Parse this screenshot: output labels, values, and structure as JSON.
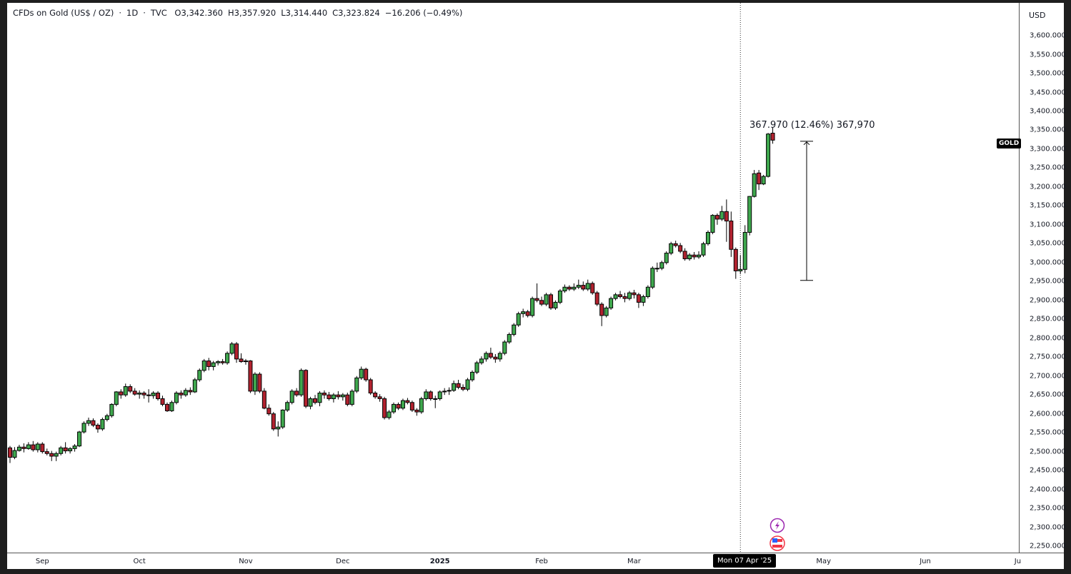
{
  "header": {
    "symbol": "CFDs on Gold (US$ / OZ)",
    "interval": "1D",
    "exchange": "TVC",
    "open": "O3,342.360",
    "high": "H3,357.920",
    "low": "L3,314.440",
    "close": "C3,323.824",
    "change": "−16.206 (−0.49%)",
    "separator": "·"
  },
  "axis": {
    "currency": "USD",
    "symbol_tag": "GOLD",
    "crosshair_date": "Mon 07 Apr '25"
  },
  "measure": {
    "label": "367.970 (12.46%) 367,970",
    "from": 2953,
    "to": 3321
  },
  "icons": [
    "lightning-event-icon",
    "us-flag-event-icon"
  ],
  "colors": {
    "up": "#3fa84e",
    "down": "#b2222f",
    "outline": "#000000"
  },
  "chart_data": {
    "type": "candlestick",
    "title": "CFDs on Gold (US$ / OZ) · 1D · TVC",
    "ylim": [
      2233,
      3687
    ],
    "yticks": [
      "2,250.000",
      "2,300.000",
      "2,350.000",
      "2,400.000",
      "2,450.000",
      "2,500.000",
      "2,550.000",
      "2,600.000",
      "2,650.000",
      "2,700.000",
      "2,750.000",
      "2,800.000",
      "2,850.000",
      "2,900.000",
      "2,950.000",
      "3,000.000",
      "3,050.000",
      "3,100.000",
      "3,150.000",
      "3,200.000",
      "3,250.000",
      "3,300.000",
      "3,350.000",
      "3,400.000",
      "3,450.000",
      "3,500.000",
      "3,550.000",
      "3,600.000"
    ],
    "xticks": [
      {
        "label": "Sep",
        "bar": 7
      },
      {
        "label": "Oct",
        "bar": 28
      },
      {
        "label": "Nov",
        "bar": 51
      },
      {
        "label": "Dec",
        "bar": 72
      },
      {
        "label": "2025",
        "bar": 93
      },
      {
        "label": "Feb",
        "bar": 115
      },
      {
        "label": "Mar",
        "bar": 135
      },
      {
        "label": "May",
        "bar": 176
      },
      {
        "label": "Jun",
        "bar": 198
      },
      {
        "label": "Ju",
        "bar": 218
      }
    ],
    "crosshair_bar": 158,
    "candles": [
      [
        2510,
        2515,
        2470,
        2485
      ],
      [
        2485,
        2512,
        2480,
        2503
      ],
      [
        2503,
        2518,
        2500,
        2512
      ],
      [
        2512,
        2522,
        2498,
        2508
      ],
      [
        2508,
        2525,
        2505,
        2518
      ],
      [
        2518,
        2528,
        2500,
        2505
      ],
      [
        2505,
        2525,
        2498,
        2520
      ],
      [
        2520,
        2525,
        2495,
        2500
      ],
      [
        2500,
        2508,
        2490,
        2495
      ],
      [
        2495,
        2502,
        2475,
        2488
      ],
      [
        2488,
        2500,
        2475,
        2495
      ],
      [
        2495,
        2515,
        2490,
        2510
      ],
      [
        2510,
        2525,
        2495,
        2502
      ],
      [
        2502,
        2512,
        2495,
        2508
      ],
      [
        2508,
        2520,
        2500,
        2515
      ],
      [
        2515,
        2555,
        2512,
        2552
      ],
      [
        2552,
        2580,
        2548,
        2575
      ],
      [
        2575,
        2590,
        2568,
        2582
      ],
      [
        2582,
        2588,
        2565,
        2570
      ],
      [
        2570,
        2575,
        2550,
        2560
      ],
      [
        2560,
        2590,
        2555,
        2585
      ],
      [
        2585,
        2600,
        2580,
        2595
      ],
      [
        2595,
        2628,
        2590,
        2625
      ],
      [
        2625,
        2660,
        2620,
        2658
      ],
      [
        2658,
        2665,
        2640,
        2650
      ],
      [
        2650,
        2680,
        2645,
        2672
      ],
      [
        2672,
        2678,
        2655,
        2660
      ],
      [
        2660,
        2668,
        2648,
        2652
      ],
      [
        2652,
        2662,
        2640,
        2655
      ],
      [
        2655,
        2660,
        2640,
        2650
      ],
      [
        2650,
        2665,
        2630,
        2648
      ],
      [
        2648,
        2660,
        2640,
        2655
      ],
      [
        2655,
        2660,
        2635,
        2640
      ],
      [
        2640,
        2648,
        2620,
        2625
      ],
      [
        2625,
        2630,
        2605,
        2608
      ],
      [
        2608,
        2635,
        2605,
        2630
      ],
      [
        2630,
        2660,
        2625,
        2655
      ],
      [
        2655,
        2662,
        2640,
        2650
      ],
      [
        2650,
        2668,
        2645,
        2662
      ],
      [
        2662,
        2670,
        2650,
        2658
      ],
      [
        2658,
        2695,
        2655,
        2690
      ],
      [
        2690,
        2720,
        2685,
        2715
      ],
      [
        2715,
        2745,
        2710,
        2740
      ],
      [
        2740,
        2748,
        2715,
        2725
      ],
      [
        2725,
        2740,
        2715,
        2735
      ],
      [
        2735,
        2742,
        2728,
        2738
      ],
      [
        2738,
        2745,
        2730,
        2735
      ],
      [
        2735,
        2765,
        2730,
        2760
      ],
      [
        2760,
        2790,
        2755,
        2785
      ],
      [
        2785,
        2790,
        2735,
        2745
      ],
      [
        2745,
        2760,
        2735,
        2738
      ],
      [
        2738,
        2745,
        2730,
        2740
      ],
      [
        2740,
        2742,
        2655,
        2660
      ],
      [
        2660,
        2710,
        2650,
        2705
      ],
      [
        2705,
        2710,
        2655,
        2660
      ],
      [
        2660,
        2668,
        2612,
        2615
      ],
      [
        2615,
        2625,
        2595,
        2600
      ],
      [
        2600,
        2605,
        2555,
        2560
      ],
      [
        2560,
        2580,
        2540,
        2565
      ],
      [
        2565,
        2612,
        2560,
        2610
      ],
      [
        2610,
        2635,
        2605,
        2630
      ],
      [
        2630,
        2665,
        2625,
        2660
      ],
      [
        2660,
        2668,
        2645,
        2650
      ],
      [
        2650,
        2720,
        2645,
        2715
      ],
      [
        2715,
        2718,
        2615,
        2620
      ],
      [
        2620,
        2645,
        2612,
        2640
      ],
      [
        2640,
        2650,
        2625,
        2630
      ],
      [
        2630,
        2660,
        2620,
        2655
      ],
      [
        2655,
        2662,
        2640,
        2650
      ],
      [
        2650,
        2658,
        2635,
        2640
      ],
      [
        2640,
        2655,
        2630,
        2650
      ],
      [
        2650,
        2660,
        2638,
        2645
      ],
      [
        2645,
        2655,
        2635,
        2650
      ],
      [
        2650,
        2656,
        2620,
        2625
      ],
      [
        2625,
        2665,
        2620,
        2660
      ],
      [
        2660,
        2700,
        2655,
        2695
      ],
      [
        2695,
        2725,
        2690,
        2718
      ],
      [
        2718,
        2722,
        2685,
        2690
      ],
      [
        2690,
        2695,
        2650,
        2655
      ],
      [
        2655,
        2660,
        2640,
        2645
      ],
      [
        2645,
        2652,
        2632,
        2640
      ],
      [
        2640,
        2645,
        2585,
        2590
      ],
      [
        2590,
        2610,
        2585,
        2605
      ],
      [
        2605,
        2630,
        2600,
        2625
      ],
      [
        2625,
        2630,
        2610,
        2615
      ],
      [
        2615,
        2640,
        2610,
        2635
      ],
      [
        2635,
        2642,
        2625,
        2630
      ],
      [
        2630,
        2635,
        2605,
        2610
      ],
      [
        2610,
        2615,
        2595,
        2605
      ],
      [
        2605,
        2645,
        2600,
        2640
      ],
      [
        2640,
        2665,
        2635,
        2658
      ],
      [
        2658,
        2662,
        2635,
        2640
      ],
      [
        2640,
        2648,
        2615,
        2640
      ],
      [
        2640,
        2662,
        2635,
        2658
      ],
      [
        2658,
        2668,
        2650,
        2660
      ],
      [
        2660,
        2670,
        2650,
        2662
      ],
      [
        2662,
        2688,
        2658,
        2680
      ],
      [
        2680,
        2690,
        2665,
        2670
      ],
      [
        2670,
        2678,
        2660,
        2665
      ],
      [
        2665,
        2695,
        2660,
        2690
      ],
      [
        2690,
        2715,
        2685,
        2710
      ],
      [
        2710,
        2740,
        2705,
        2735
      ],
      [
        2735,
        2752,
        2730,
        2745
      ],
      [
        2745,
        2765,
        2738,
        2760
      ],
      [
        2760,
        2775,
        2745,
        2750
      ],
      [
        2750,
        2758,
        2735,
        2745
      ],
      [
        2745,
        2765,
        2738,
        2760
      ],
      [
        2760,
        2795,
        2755,
        2790
      ],
      [
        2790,
        2815,
        2785,
        2810
      ],
      [
        2810,
        2840,
        2805,
        2835
      ],
      [
        2835,
        2870,
        2830,
        2865
      ],
      [
        2865,
        2878,
        2855,
        2870
      ],
      [
        2870,
        2875,
        2855,
        2860
      ],
      [
        2860,
        2910,
        2855,
        2905
      ],
      [
        2905,
        2945,
        2895,
        2900
      ],
      [
        2900,
        2910,
        2885,
        2890
      ],
      [
        2890,
        2920,
        2885,
        2915
      ],
      [
        2915,
        2920,
        2875,
        2880
      ],
      [
        2880,
        2900,
        2875,
        2895
      ],
      [
        2895,
        2930,
        2890,
        2925
      ],
      [
        2925,
        2942,
        2920,
        2935
      ],
      [
        2935,
        2940,
        2925,
        2930
      ],
      [
        2930,
        2945,
        2925,
        2935
      ],
      [
        2935,
        2955,
        2930,
        2940
      ],
      [
        2940,
        2950,
        2925,
        2930
      ],
      [
        2930,
        2955,
        2925,
        2945
      ],
      [
        2945,
        2950,
        2915,
        2920
      ],
      [
        2920,
        2925,
        2885,
        2890
      ],
      [
        2890,
        2895,
        2832,
        2860
      ],
      [
        2860,
        2885,
        2855,
        2880
      ],
      [
        2880,
        2910,
        2875,
        2905
      ],
      [
        2905,
        2920,
        2900,
        2915
      ],
      [
        2915,
        2925,
        2905,
        2910
      ],
      [
        2910,
        2920,
        2895,
        2905
      ],
      [
        2905,
        2925,
        2900,
        2920
      ],
      [
        2920,
        2928,
        2905,
        2915
      ],
      [
        2915,
        2920,
        2880,
        2895
      ],
      [
        2895,
        2915,
        2885,
        2910
      ],
      [
        2910,
        2940,
        2905,
        2935
      ],
      [
        2935,
        2990,
        2930,
        2985
      ],
      [
        2985,
        3000,
        2975,
        2985
      ],
      [
        2985,
        3005,
        2980,
        3000
      ],
      [
        3000,
        3030,
        2995,
        3025
      ],
      [
        3025,
        3055,
        3020,
        3050
      ],
      [
        3050,
        3058,
        3040,
        3045
      ],
      [
        3045,
        3052,
        3025,
        3030
      ],
      [
        3030,
        3038,
        3005,
        3010
      ],
      [
        3010,
        3025,
        3005,
        3020
      ],
      [
        3020,
        3028,
        3008,
        3015
      ],
      [
        3015,
        3030,
        3010,
        3020
      ],
      [
        3020,
        3055,
        3015,
        3050
      ],
      [
        3050,
        3085,
        3045,
        3080
      ],
      [
        3080,
        3128,
        3075,
        3125
      ],
      [
        3125,
        3130,
        3100,
        3115
      ],
      [
        3115,
        3150,
        3110,
        3135
      ],
      [
        3135,
        3167,
        3055,
        3110
      ],
      [
        3110,
        3135,
        3015,
        3035
      ],
      [
        3035,
        3040,
        2957,
        2978
      ],
      [
        2978,
        3020,
        2970,
        2982
      ],
      [
        2982,
        3099,
        2972,
        3080
      ],
      [
        3080,
        3176,
        3072,
        3175
      ],
      [
        3175,
        3245,
        3172,
        3235
      ],
      [
        3237,
        3245,
        3192,
        3208
      ],
      [
        3208,
        3232,
        3205,
        3228
      ],
      [
        3228,
        3343,
        3225,
        3340
      ],
      [
        3342.36,
        3357.92,
        3314.44,
        3323.824
      ]
    ]
  }
}
